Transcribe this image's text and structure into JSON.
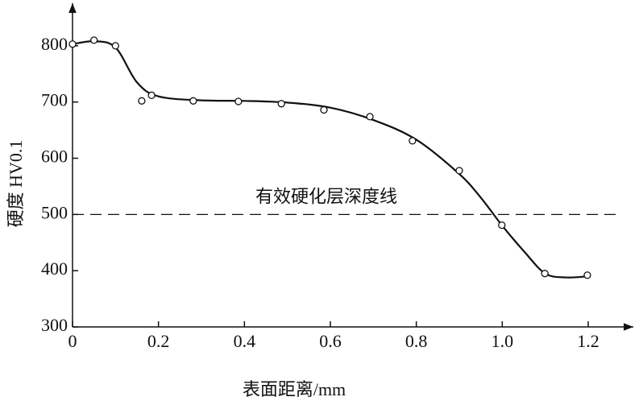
{
  "chart_data": {
    "type": "scatter",
    "xlabel": "表面距离/mm",
    "ylabel": "硬度 HV0.1",
    "xlim": [
      0,
      1.29
    ],
    "ylim": [
      300,
      870
    ],
    "xticks": [
      0,
      0.2,
      0.4,
      0.6,
      0.8,
      {
        "value": 1,
        "label": "1.0"
      },
      1.2
    ],
    "yticks": [
      300,
      400,
      500,
      600,
      700,
      800
    ],
    "reference_line": {
      "value": 500,
      "label": "有效硬化层深度线"
    },
    "series": [
      {
        "mode": "markers",
        "color": "#111111",
        "x": [
          0,
          0.05,
          0.1,
          0.161,
          0.184,
          0.281,
          0.386,
          0.486,
          0.585,
          0.692,
          0.791,
          0.9,
          0.999,
          1.099,
          1.198
        ],
        "values": [
          803,
          810,
          800,
          702,
          712,
          702,
          701,
          697,
          686,
          674,
          631,
          578,
          481,
          395,
          392
        ]
      },
      {
        "mode": "line",
        "color": "#111111",
        "x": [
          0,
          0.05,
          0.1,
          0.15,
          0.2,
          0.3,
          0.4,
          0.5,
          0.6,
          0.7,
          0.8,
          0.9,
          0.95,
          1.0,
          1.05,
          1.1,
          1.15,
          1.2
        ],
        "values": [
          803,
          808,
          797,
          735,
          710,
          703,
          702,
          699,
          690,
          668,
          633,
          572,
          530,
          480,
          435,
          395,
          388,
          390
        ]
      }
    ]
  }
}
